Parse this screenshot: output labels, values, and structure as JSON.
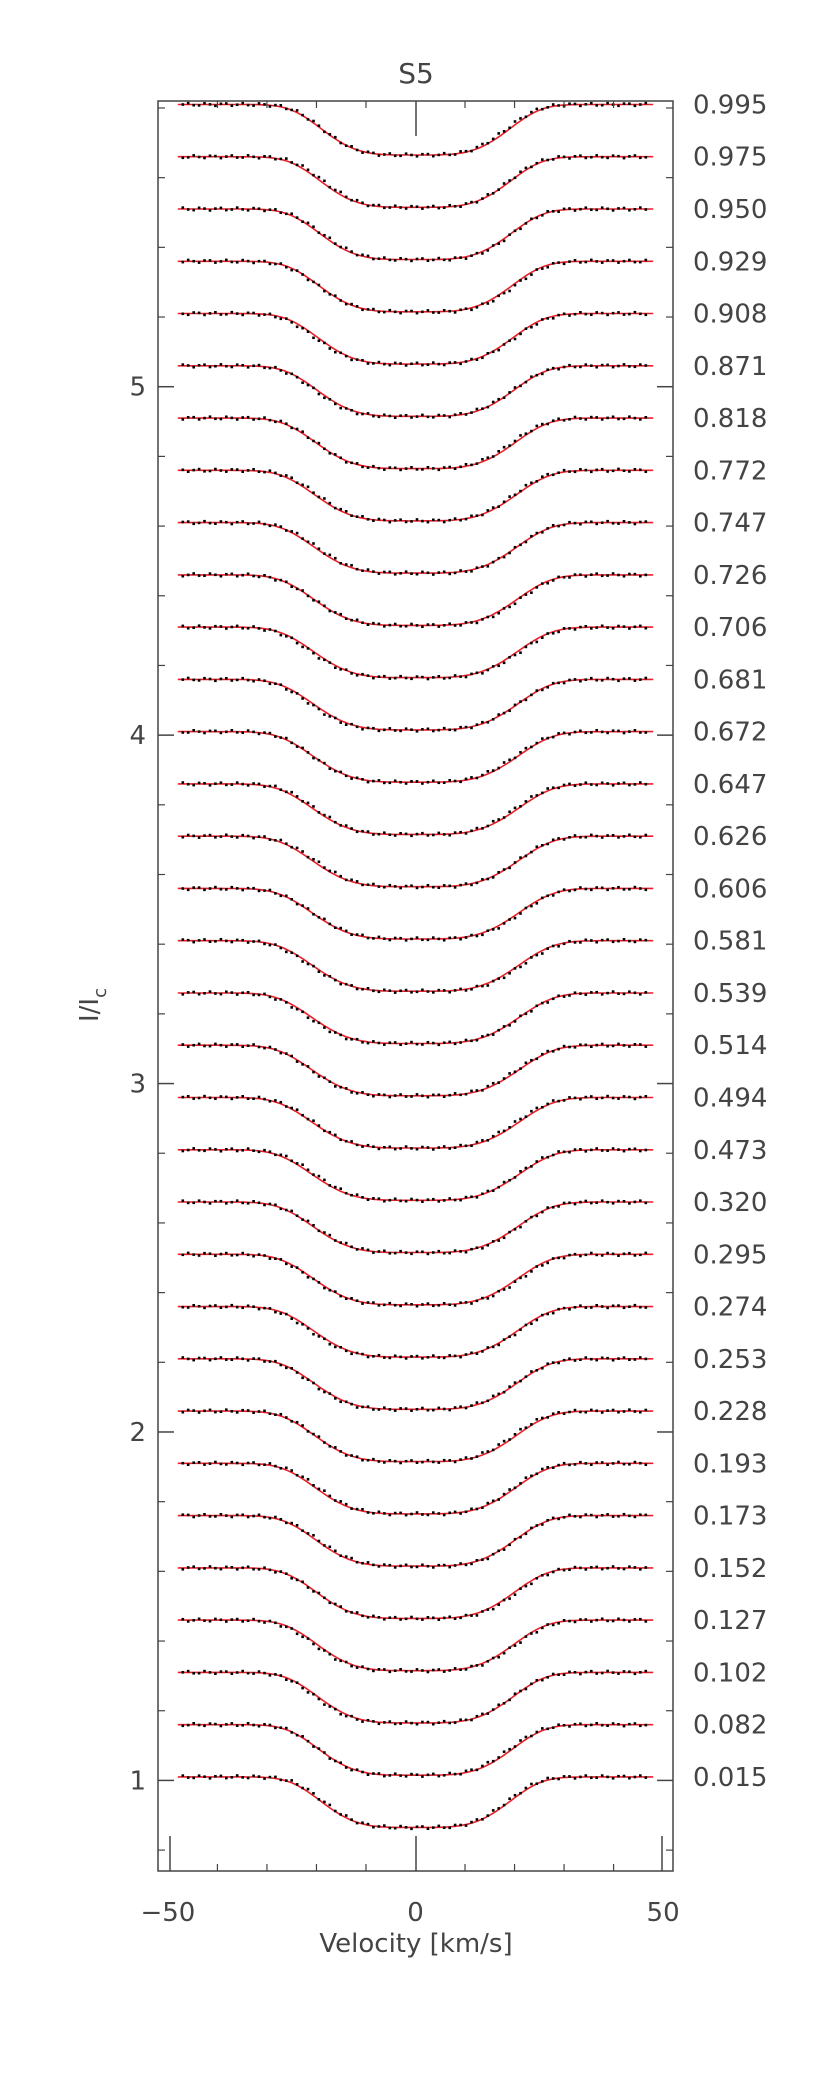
{
  "chart_data": {
    "type": "line",
    "title": "S5",
    "xlabel": "Velocity [km/s]",
    "ylabel_main": "I/I",
    "ylabel_sub": "c",
    "xlim": [
      -52,
      52
    ],
    "ylim": [
      0.74,
      5.82
    ],
    "x_ticks": [
      -50,
      0,
      50
    ],
    "y_ticks": [
      1,
      2,
      3,
      4,
      5
    ],
    "profile": {
      "line_center": 0,
      "line_depth": 0.145,
      "profile_width": 20,
      "continuum_extent": 48
    },
    "phases": [
      "0.015",
      "0.082",
      "0.102",
      "0.127",
      "0.152",
      "0.173",
      "0.193",
      "0.228",
      "0.253",
      "0.274",
      "0.295",
      "0.320",
      "0.473",
      "0.494",
      "0.514",
      "0.539",
      "0.581",
      "0.606",
      "0.626",
      "0.647",
      "0.672",
      "0.681",
      "0.706",
      "0.726",
      "0.747",
      "0.772",
      "0.818",
      "0.871",
      "0.908",
      "0.929",
      "0.950",
      "0.975",
      "0.995"
    ],
    "offsets": [
      1.01,
      1.16,
      1.31,
      1.46,
      1.61,
      1.76,
      1.91,
      2.06,
      2.21,
      2.36,
      2.51,
      2.66,
      2.81,
      2.96,
      3.11,
      3.26,
      3.41,
      3.56,
      3.71,
      3.86,
      4.01,
      4.16,
      4.31,
      4.46,
      4.61,
      4.76,
      4.91,
      5.06,
      5.21,
      5.36,
      5.51,
      5.66,
      5.81
    ],
    "colors": {
      "model": "#e8202a",
      "observed": "#000000",
      "axes": "#444444"
    }
  }
}
